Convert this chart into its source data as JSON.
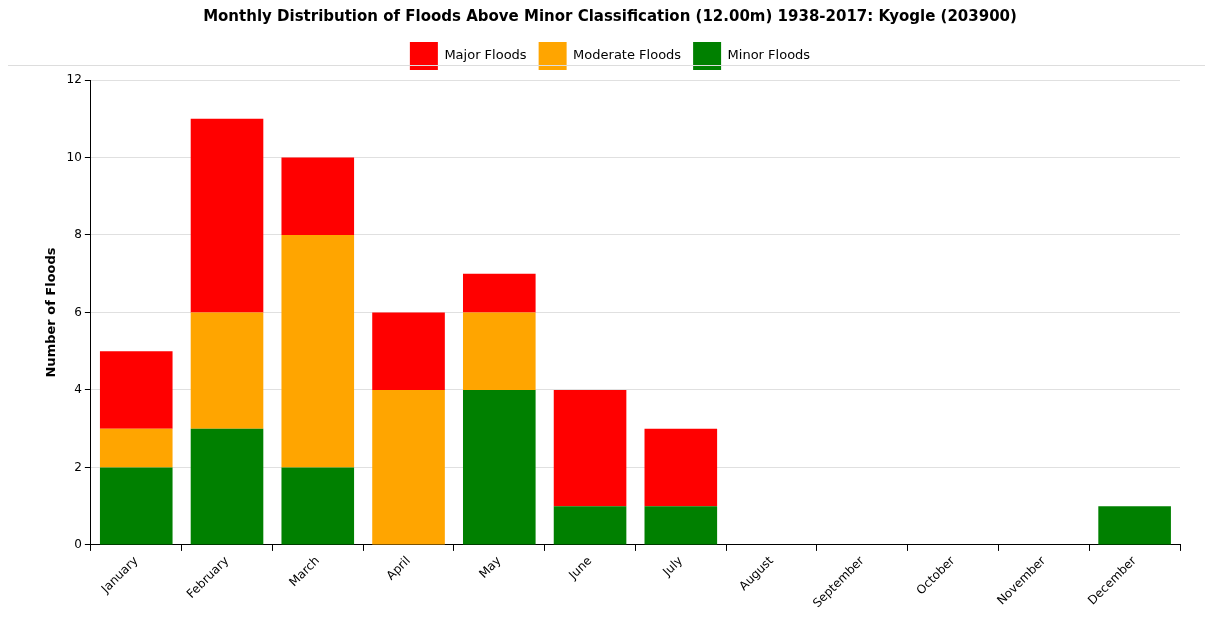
{
  "chart_data": {
    "type": "bar",
    "title": "Monthly Distribution of Floods Above Minor Classification (12.00m) 1938-2017: Kyogle (203900)",
    "ylabel": "Number of Floods",
    "categories": [
      "January",
      "February",
      "March",
      "April",
      "May",
      "June",
      "July",
      "August",
      "September",
      "October",
      "November",
      "December"
    ],
    "stacked": true,
    "series": [
      {
        "name": "Minor Floods",
        "color": "#008000",
        "values": [
          2,
          3,
          2,
          0,
          4,
          1,
          1,
          0,
          0,
          0,
          0,
          1
        ]
      },
      {
        "name": "Moderate Floods",
        "color": "#ffa500",
        "values": [
          1,
          3,
          6,
          4,
          2,
          0,
          0,
          0,
          0,
          0,
          0,
          0
        ]
      },
      {
        "name": "Major Floods",
        "color": "#ff0000",
        "values": [
          2,
          5,
          2,
          2,
          1,
          3,
          2,
          0,
          0,
          0,
          0,
          0
        ]
      }
    ],
    "ylim": [
      0,
      12
    ],
    "yticks": [
      0,
      2,
      4,
      6,
      8,
      10,
      12
    ],
    "grid": "y",
    "legend": "top"
  }
}
